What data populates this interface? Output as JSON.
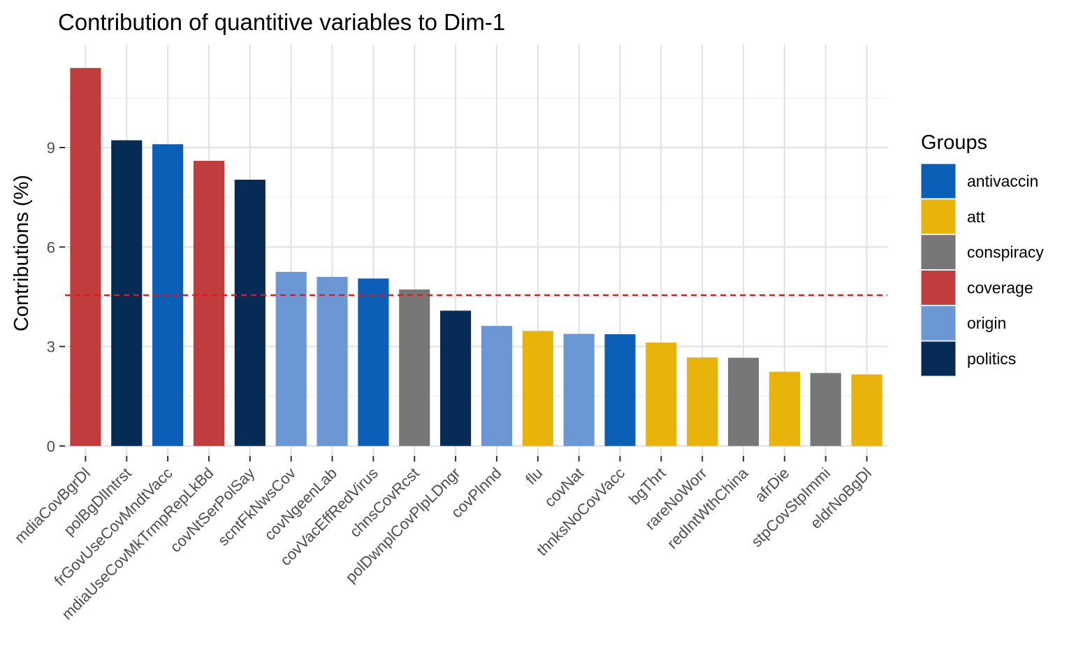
{
  "chart_data": {
    "type": "bar",
    "title": "Contribution of quantitive variables to Dim-1",
    "xlabel": "",
    "ylabel": "Contributions (%)",
    "ylim": [
      -0.3,
      12.1
    ],
    "yticks": [
      0,
      3,
      6,
      9
    ],
    "reference_line": {
      "value": 4.55,
      "color": "#e8141b",
      "style": "dashed"
    },
    "categories": [
      "mdiaCovBgrDl",
      "polBgDlIntrst",
      "frGovUseCovMndtVacc",
      "mdiaUseCovMkTrmpRepLkBd",
      "covNtSerPolSay",
      "scntFkNwsCov",
      "covNgeenLab",
      "covVacEffRedVirus",
      "chnsCovRcst",
      "polDwnplCovPlpLDngr",
      "covPlnnd",
      "flu",
      "covNat",
      "thnksNoCovVacc",
      "bgThrt",
      "rareNoWorr",
      "redIntWthChina",
      "afrDie",
      "stpCovStpImmi",
      "eldrNoBgDl"
    ],
    "values": [
      11.4,
      9.22,
      9.1,
      8.6,
      8.03,
      5.25,
      5.1,
      5.05,
      4.72,
      4.08,
      3.62,
      3.47,
      3.38,
      3.37,
      3.12,
      2.67,
      2.66,
      2.24,
      2.2,
      2.16
    ],
    "groups": [
      "coverage",
      "politics",
      "antivaccin",
      "coverage",
      "politics",
      "origin",
      "origin",
      "antivaccin",
      "conspiracy",
      "politics",
      "origin",
      "att",
      "origin",
      "antivaccin",
      "att",
      "att",
      "conspiracy",
      "att",
      "conspiracy",
      "att"
    ],
    "legend": {
      "title": "Groups",
      "placement": "right",
      "entries": [
        {
          "name": "antivaccin",
          "color": "#0b5fb7"
        },
        {
          "name": "att",
          "color": "#e8b30b"
        },
        {
          "name": "conspiracy",
          "color": "#777777"
        },
        {
          "name": "coverage",
          "color": "#c13d3d"
        },
        {
          "name": "origin",
          "color": "#6b97d5"
        },
        {
          "name": "politics",
          "color": "#062c55"
        }
      ]
    },
    "grid": true
  }
}
